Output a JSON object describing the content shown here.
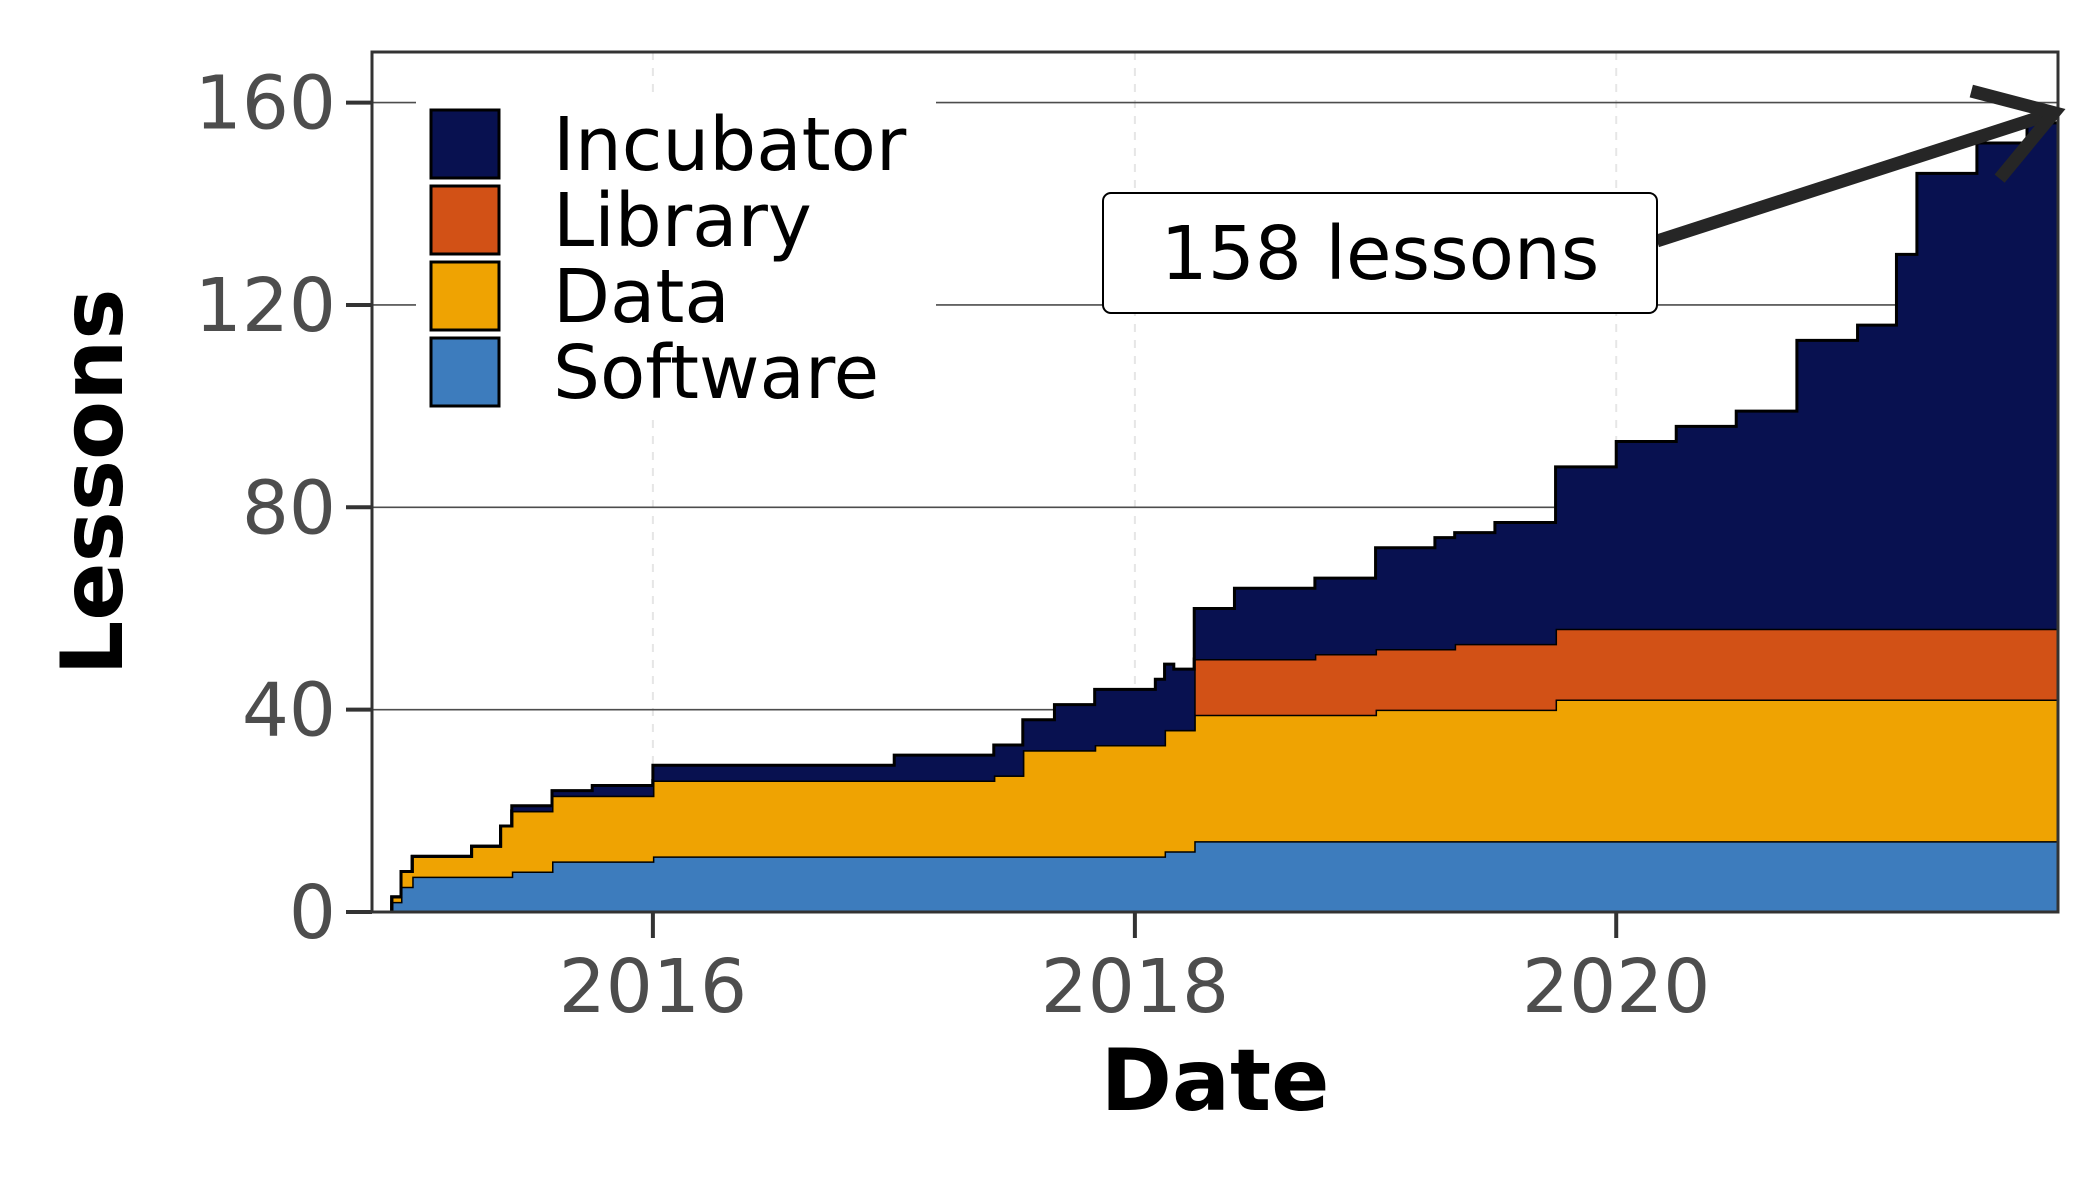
{
  "chart_data": {
    "type": "area",
    "stacked": true,
    "step": true,
    "xlabel": "Date",
    "ylabel": "Lessons",
    "x_ticks": [
      "2016",
      "2018",
      "2020"
    ],
    "y_ticks": [
      0,
      40,
      80,
      120,
      160
    ],
    "xlim": [
      "2014-11-01",
      "2021-11-01"
    ],
    "ylim": [
      0,
      170
    ],
    "grid": true,
    "legend_position": "top-left",
    "annotation": {
      "text": "158 lessons",
      "points_to": {
        "x": "2021-11-01",
        "y": 158
      }
    },
    "series": [
      {
        "name": "Software",
        "color": "#3d7cbd",
        "points": [
          [
            "2014-11-01",
            0
          ],
          [
            "2014-12-01",
            2
          ],
          [
            "2014-12-15",
            5
          ],
          [
            "2015-01-01",
            7
          ],
          [
            "2015-06-01",
            8
          ],
          [
            "2015-08-01",
            10
          ],
          [
            "2016-01-01",
            11
          ],
          [
            "2018-02-15",
            12
          ],
          [
            "2018-04-01",
            14
          ],
          [
            "2021-11-01",
            14
          ]
        ]
      },
      {
        "name": "Data",
        "color": "#efa302",
        "points": [
          [
            "2014-11-01",
            0
          ],
          [
            "2014-12-01",
            1
          ],
          [
            "2014-12-15",
            3
          ],
          [
            "2015-01-01",
            4
          ],
          [
            "2015-04-01",
            6
          ],
          [
            "2015-05-15",
            10
          ],
          [
            "2015-06-01",
            12
          ],
          [
            "2015-08-01",
            13
          ],
          [
            "2016-01-01",
            15
          ],
          [
            "2017-06-01",
            16
          ],
          [
            "2017-07-15",
            21
          ],
          [
            "2017-11-01",
            22
          ],
          [
            "2018-02-15",
            24
          ],
          [
            "2018-04-01",
            25
          ],
          [
            "2019-01-01",
            26
          ],
          [
            "2019-10-01",
            28
          ],
          [
            "2021-11-01",
            28
          ]
        ]
      },
      {
        "name": "Library",
        "color": "#d25116",
        "points": [
          [
            "2014-11-01",
            0
          ],
          [
            "2018-03-15",
            0
          ],
          [
            "2018-04-01",
            11
          ],
          [
            "2018-10-01",
            12
          ],
          [
            "2019-05-01",
            13
          ],
          [
            "2019-10-01",
            14
          ],
          [
            "2021-11-01",
            14
          ]
        ]
      },
      {
        "name": "Incubator",
        "color": "#081150",
        "points": [
          [
            "2014-11-01",
            0
          ],
          [
            "2015-06-01",
            1
          ],
          [
            "2015-10-01",
            2
          ],
          [
            "2016-01-01",
            3
          ],
          [
            "2017-01-01",
            5
          ],
          [
            "2017-06-01",
            6
          ],
          [
            "2017-09-01",
            9
          ],
          [
            "2017-11-01",
            11
          ],
          [
            "2018-01-01",
            11
          ],
          [
            "2018-02-01",
            13
          ],
          [
            "2018-03-01",
            12
          ],
          [
            "2018-04-01",
            10
          ],
          [
            "2018-06-01",
            14
          ],
          [
            "2018-10-01",
            15
          ],
          [
            "2019-01-01",
            20
          ],
          [
            "2019-04-01",
            22
          ],
          [
            "2019-07-01",
            24
          ],
          [
            "2019-10-01",
            32
          ],
          [
            "2020-01-01",
            37
          ],
          [
            "2020-04-01",
            40
          ],
          [
            "2020-07-01",
            43
          ],
          [
            "2020-10-01",
            57
          ],
          [
            "2021-01-01",
            60
          ],
          [
            "2021-03-01",
            74
          ],
          [
            "2021-04-01",
            90
          ],
          [
            "2021-07-01",
            96
          ],
          [
            "2021-09-15",
            100
          ],
          [
            "2021-11-01",
            102
          ]
        ]
      }
    ],
    "legend_order": [
      "Incubator",
      "Library",
      "Data",
      "Software"
    ]
  },
  "colors": {
    "gridline": "#4d4d4d",
    "minor_gridline": "#e6e6e6",
    "panel_border": "#333333",
    "tick_label": "#4d4d4d",
    "arrow": "#262626"
  }
}
